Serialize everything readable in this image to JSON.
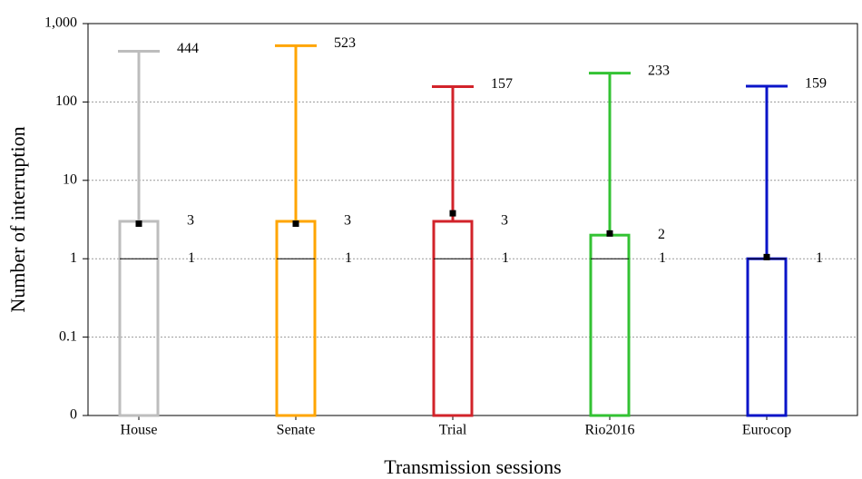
{
  "chart_data": {
    "type": "box",
    "xlabel": "Transmission sessions",
    "ylabel": "Number of interruption",
    "log_y": true,
    "grid": true,
    "ylim": [
      0.01,
      1000
    ],
    "yticks": [
      {
        "value": 0.01,
        "label": "0"
      },
      0.1,
      1,
      10,
      100,
      {
        "value": 1000,
        "label": "1,000"
      }
    ],
    "categories": [
      "House",
      "Senate",
      "Trial",
      "Rio2016",
      "Eurocop"
    ],
    "series": [
      {
        "name": "House",
        "color": "#bdbdbd",
        "q1": 0,
        "median": 1,
        "q3": 3,
        "max": 444,
        "mean": 2.8
      },
      {
        "name": "Senate",
        "color": "#ffa500",
        "q1": 0,
        "median": 1,
        "q3": 3,
        "max": 523,
        "mean": 2.8
      },
      {
        "name": "Trial",
        "color": "#d2232a",
        "q1": 0,
        "median": 1,
        "q3": 3,
        "max": 157,
        "mean": 3.8
      },
      {
        "name": "Rio2016",
        "color": "#33c233",
        "q1": 0,
        "median": 1,
        "q3": 2,
        "max": 233,
        "mean": 2.1
      },
      {
        "name": "Eurocop",
        "color": "#0a14c8",
        "q1": 0,
        "median": 1,
        "q3": 1,
        "max": 159,
        "mean": 1.05
      }
    ]
  }
}
